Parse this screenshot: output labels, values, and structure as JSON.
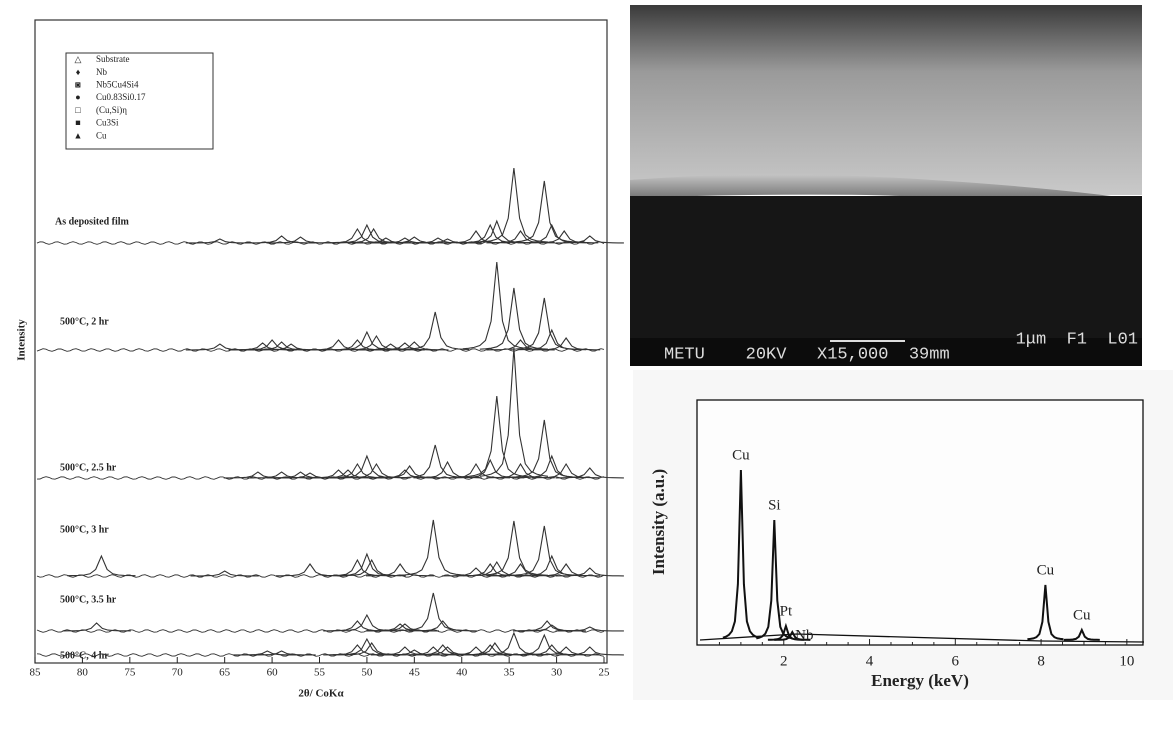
{
  "chart_data": [
    {
      "type": "spectrum",
      "ylabel": "Intensity",
      "xlabel": "2θ/ CoKα",
      "color": "#333333",
      "xlim": [
        85,
        25
      ],
      "xticks": [
        85,
        80,
        75,
        70,
        65,
        60,
        55,
        50,
        45,
        40,
        35,
        30,
        25
      ],
      "legend": [
        "Substrate",
        "Nb",
        "Nb5Cu4Si4",
        "Cu0.83Si0.17",
        "(Cu,Si)η",
        "Cu3Si",
        "Cu"
      ],
      "series": [
        {
          "name": "As deposited film",
          "x": [
            65.5,
            59,
            57,
            51,
            50,
            49.3,
            48,
            46,
            45,
            42.5,
            41.5,
            38.5,
            37,
            36.3,
            34.5,
            33.8,
            31.3,
            30.5,
            29.2,
            26.5
          ],
          "values": [
            4,
            7,
            6,
            14,
            18,
            14,
            5,
            5,
            6,
            5,
            4,
            12,
            18,
            22,
            75,
            12,
            62,
            18,
            12,
            7
          ]
        },
        {
          "name": "500°C, 2 hr",
          "x": [
            65.5,
            61,
            60,
            59,
            58,
            53,
            51,
            50,
            49,
            47.5,
            46,
            45,
            42.8,
            36.3,
            34.5,
            33.8,
            31.3,
            30.5,
            29
          ],
          "values": [
            6,
            7,
            10,
            8,
            6,
            10,
            10,
            18,
            14,
            6,
            7,
            8,
            38,
            88,
            62,
            10,
            52,
            20,
            12
          ]
        },
        {
          "name": "500°C, 2.5 hr",
          "x": [
            61.5,
            59,
            57,
            56,
            53,
            52,
            51,
            50,
            49,
            46,
            45.5,
            42.8,
            41.5,
            38.5,
            37,
            36.3,
            34.5,
            33.8,
            31.3,
            30.5,
            29,
            26.5
          ],
          "values": [
            6,
            6,
            6,
            5,
            8,
            8,
            14,
            22,
            14,
            8,
            12,
            33,
            16,
            14,
            18,
            82,
            130,
            14,
            58,
            22,
            14,
            10
          ]
        },
        {
          "name": "500°C, 3 hr",
          "x": [
            78,
            65,
            56,
            51,
            50,
            49.5,
            46.5,
            43,
            38.5,
            37,
            36.3,
            34.5,
            33.8,
            31.3,
            30.5,
            29,
            26.5
          ],
          "values": [
            20,
            5,
            12,
            16,
            22,
            16,
            12,
            56,
            8,
            12,
            14,
            55,
            12,
            50,
            20,
            12,
            8
          ]
        },
        {
          "name": "500°C, 3.5 hr",
          "x": [
            78.5,
            51,
            50,
            46.5,
            46,
            43,
            42,
            31,
            30.5,
            26.5
          ],
          "values": [
            8,
            10,
            16,
            7,
            7,
            38,
            10,
            10,
            6,
            4
          ]
        },
        {
          "name": "500°C, 4 hr",
          "x": [
            60.5,
            59,
            51,
            50,
            49.5,
            46,
            45,
            43,
            42,
            41.5,
            38.5,
            37,
            36.5,
            34.5,
            31.3,
            30.5,
            29,
            26.5
          ],
          "values": [
            4,
            4,
            10,
            16,
            12,
            8,
            5,
            8,
            10,
            8,
            8,
            10,
            12,
            22,
            20,
            10,
            8,
            8
          ]
        }
      ]
    },
    {
      "type": "spectrum",
      "ylabel": "Intensity (a.u.)",
      "xlabel": "Energy (keV)",
      "color": "#111111",
      "xlim": [
        0,
        10.4
      ],
      "xticks": [
        2,
        4,
        6,
        8,
        10
      ],
      "series": [
        {
          "x": [
            1.0,
            1.78,
            2.05,
            2.2,
            8.1,
            8.95
          ],
          "values": [
            170,
            120,
            14,
            8,
            55,
            10
          ],
          "value_labels": [
            "Cu",
            "Si",
            "Pt",
            "Nb",
            "Cu",
            "Cu"
          ]
        }
      ]
    }
  ],
  "sem_image": {
    "caption_left": "METU    20KV   X15,000  39mm",
    "caption_right": "1μm  F1  L01"
  }
}
